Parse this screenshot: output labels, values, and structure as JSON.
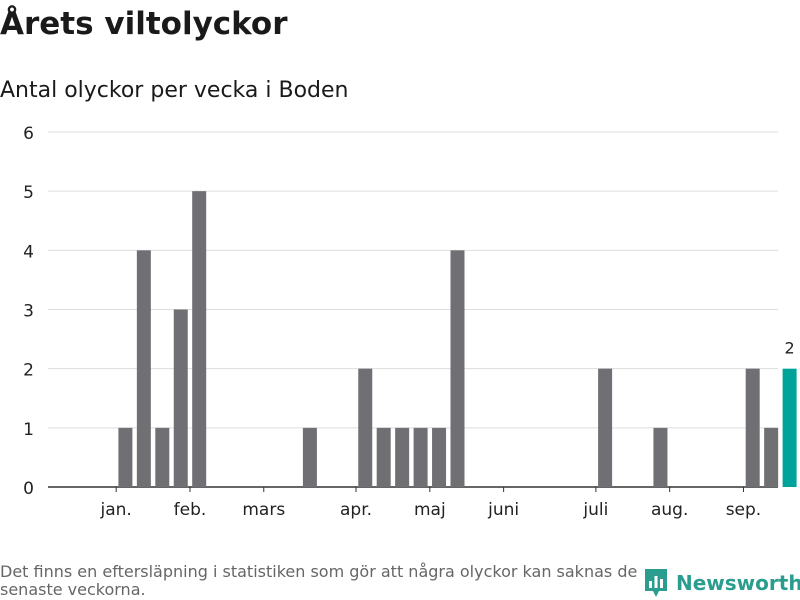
{
  "title": "Årets viltolyckor",
  "subtitle": "Antal olyckor per vecka i Boden",
  "footnote": "Det finns en eftersläpning i statistiken som gör att några olyckor kan saknas de senaste veckorna.",
  "brand": {
    "name": "Newsworthy",
    "icon": "newsworthy-logo-icon"
  },
  "colors": {
    "bar": "#707074",
    "highlight": "#00a39a",
    "grid": "#dddddd",
    "axis": "#333333",
    "brand": "#2a9d8f"
  },
  "chart_data": {
    "type": "bar",
    "title": "Antal olyckor per vecka i Boden",
    "xlabel": "",
    "ylabel": "",
    "ylim": [
      0,
      6
    ],
    "yticks": [
      0,
      1,
      2,
      3,
      4,
      5,
      6
    ],
    "grid": true,
    "weeks": [
      1,
      2,
      3,
      4,
      5,
      6,
      7,
      8,
      9,
      10,
      11,
      12,
      13,
      14,
      15,
      16,
      17,
      18,
      19,
      20,
      21,
      22,
      23,
      24,
      25,
      26,
      27,
      28,
      29,
      30,
      31,
      32,
      33,
      34,
      35,
      36,
      37,
      38,
      39
    ],
    "values": [
      0,
      0,
      1,
      4,
      1,
      3,
      5,
      0,
      0,
      0,
      0,
      0,
      1,
      0,
      0,
      2,
      1,
      1,
      1,
      1,
      4,
      0,
      0,
      0,
      0,
      0,
      0,
      0,
      2,
      0,
      0,
      1,
      0,
      0,
      0,
      0,
      2,
      1,
      2
    ],
    "highlight_week": 39,
    "highlight_label": "2",
    "month_labels": [
      {
        "label": "jan.",
        "week": 2.5
      },
      {
        "label": "feb.",
        "week": 6.5
      },
      {
        "label": "mars",
        "week": 10.5
      },
      {
        "label": "apr.",
        "week": 15.5
      },
      {
        "label": "maj",
        "week": 19.5
      },
      {
        "label": "juni",
        "week": 23.5
      },
      {
        "label": "juli",
        "week": 28.5
      },
      {
        "label": "aug.",
        "week": 32.5
      },
      {
        "label": "sep.",
        "week": 36.5
      }
    ]
  }
}
